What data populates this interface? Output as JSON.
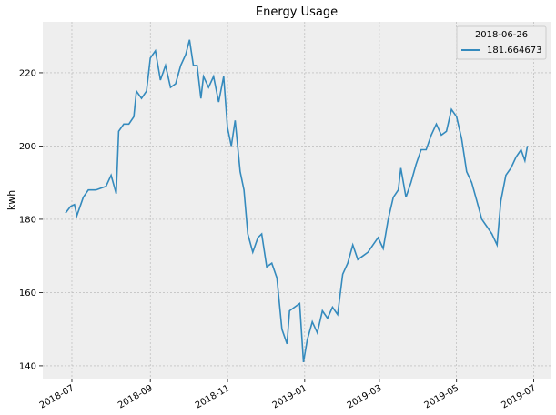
{
  "chart_data": {
    "type": "line",
    "title": "Energy Usage",
    "ylabel": "kwh",
    "legend_title": "2018-06-26",
    "legend": "upper right",
    "grid": true,
    "x": [
      "2018-06-26",
      "2018-06-30",
      "2018-07-03",
      "2018-07-05",
      "2018-07-10",
      "2018-07-14",
      "2018-07-20",
      "2018-07-28",
      "2018-08-01",
      "2018-08-05",
      "2018-08-07",
      "2018-08-11",
      "2018-08-15",
      "2018-08-19",
      "2018-08-21",
      "2018-08-25",
      "2018-08-29",
      "2018-09-01",
      "2018-09-05",
      "2018-09-09",
      "2018-09-13",
      "2018-09-17",
      "2018-09-21",
      "2018-09-25",
      "2018-09-29",
      "2018-10-02",
      "2018-10-05",
      "2018-10-08",
      "2018-10-11",
      "2018-10-13",
      "2018-10-17",
      "2018-10-21",
      "2018-10-25",
      "2018-10-29",
      "2018-11-01",
      "2018-11-04",
      "2018-11-07",
      "2018-11-11",
      "2018-11-14",
      "2018-11-17",
      "2018-11-21",
      "2018-11-25",
      "2018-11-28",
      "2018-12-02",
      "2018-12-06",
      "2018-12-10",
      "2018-12-14",
      "2018-12-18",
      "2018-12-20",
      "2018-12-24",
      "2018-12-28",
      "2018-12-31",
      "2019-01-03",
      "2019-01-07",
      "2019-01-11",
      "2019-01-15",
      "2019-01-19",
      "2019-01-23",
      "2019-01-27",
      "2019-01-31",
      "2019-02-04",
      "2019-02-08",
      "2019-02-12",
      "2019-02-16",
      "2019-02-20",
      "2019-02-24",
      "2019-02-28",
      "2019-03-04",
      "2019-03-08",
      "2019-03-12",
      "2019-03-16",
      "2019-03-18",
      "2019-03-22",
      "2019-03-26",
      "2019-03-30",
      "2019-04-03",
      "2019-04-07",
      "2019-04-11",
      "2019-04-15",
      "2019-04-19",
      "2019-04-23",
      "2019-04-27",
      "2019-05-01",
      "2019-05-05",
      "2019-05-09",
      "2019-05-13",
      "2019-05-17",
      "2019-05-21",
      "2019-05-25",
      "2019-05-29",
      "2019-06-02",
      "2019-06-05",
      "2019-06-09",
      "2019-06-13",
      "2019-06-17",
      "2019-06-21",
      "2019-06-24",
      "2019-06-26"
    ],
    "series": [
      {
        "name": "181.664673",
        "color": "#348ABD",
        "values": [
          181.7,
          183.5,
          184,
          181,
          186,
          188,
          188,
          189,
          192,
          187,
          204,
          206,
          206,
          208,
          215,
          213,
          215,
          224,
          226,
          218,
          222,
          216,
          217,
          222,
          225,
          229,
          222,
          222,
          213,
          219,
          216,
          219,
          212,
          219,
          205,
          200,
          207,
          193,
          188,
          176,
          171,
          175,
          176,
          167,
          168,
          164,
          150,
          146,
          155,
          156,
          157,
          141,
          147,
          152,
          149,
          155,
          153,
          156,
          154,
          165,
          168,
          173,
          169,
          170,
          171,
          173,
          175,
          172,
          180,
          186,
          188,
          194,
          186,
          190,
          195,
          199,
          199,
          203,
          206,
          203,
          204,
          210,
          208,
          202,
          193,
          190,
          185,
          180,
          178,
          176,
          173,
          185,
          192,
          194,
          197,
          199,
          196,
          200
        ]
      }
    ],
    "xlim": [
      "2018-06-08",
      "2019-07-15"
    ],
    "xticks": [
      {
        "value": "2018-07-01",
        "label": "2018-07"
      },
      {
        "value": "2018-09-01",
        "label": "2018-09"
      },
      {
        "value": "2018-11-01",
        "label": "2018-11"
      },
      {
        "value": "2019-01-01",
        "label": "2019-01"
      },
      {
        "value": "2019-03-01",
        "label": "2019-03"
      },
      {
        "value": "2019-05-01",
        "label": "2019-05"
      },
      {
        "value": "2019-07-01",
        "label": "2019-07"
      }
    ],
    "ylim": [
      136.5,
      233.9
    ],
    "yticks": [
      140,
      160,
      180,
      200,
      220
    ]
  }
}
